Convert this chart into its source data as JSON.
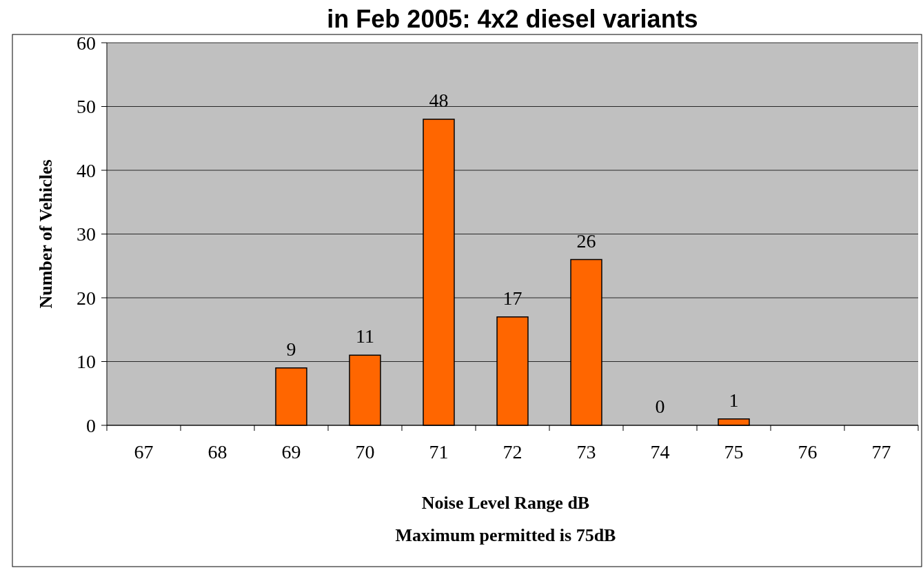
{
  "chart_data": {
    "type": "bar",
    "title": "in Feb 2005: 4x2 diesel variants",
    "xlabel": "Noise Level Range dB",
    "ylabel": "Number of Vehicles",
    "annotations": [
      "Maximum permitted is 75dB"
    ],
    "categories": [
      "67",
      "68",
      "69",
      "70",
      "71",
      "72",
      "73",
      "74",
      "75",
      "76",
      "77"
    ],
    "values": [
      null,
      null,
      9,
      11,
      48,
      17,
      26,
      0,
      1,
      null,
      null
    ],
    "value_labels": [
      null,
      null,
      "9",
      "11",
      "48",
      "17",
      "26",
      "0",
      "1",
      null,
      null
    ],
    "color": "#ff6600",
    "ylim": [
      0,
      60
    ],
    "yticks": [
      0,
      10,
      20,
      30,
      40,
      50,
      60
    ],
    "grid": "y"
  }
}
